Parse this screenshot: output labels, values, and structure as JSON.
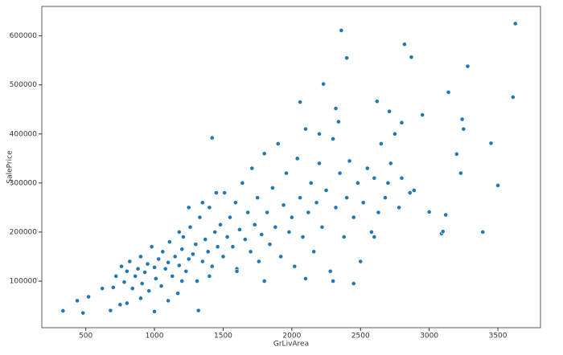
{
  "chart_data": {
    "type": "scatter",
    "xlabel": "GrLivArea",
    "ylabel": "SalePrice",
    "color": "#1f77b4",
    "xlim": [
      180,
      3810
    ],
    "ylim": [
      5000,
      660000
    ],
    "xticks": [
      500,
      1000,
      1500,
      2000,
      2500,
      3000,
      3500
    ],
    "yticks": [
      100000,
      200000,
      300000,
      400000,
      500000,
      600000
    ],
    "x": [
      334,
      438,
      480,
      520,
      2360,
      2400,
      3627,
      2820,
      2870,
      3280,
      2230,
      3140,
      3610,
      2060,
      2620,
      2320,
      2950,
      2710,
      3240,
      2340,
      2800,
      3250,
      1420,
      3450,
      3200,
      3230,
      3500,
      3390,
      3090,
      3100,
      3000,
      3120,
      2890,
      2860,
      700,
      720,
      750,
      760,
      780,
      800,
      820,
      840,
      860,
      880,
      900,
      910,
      930,
      950,
      960,
      980,
      1000,
      1010,
      1030,
      1050,
      1060,
      1080,
      1100,
      1110,
      1130,
      1150,
      1170,
      1180,
      1200,
      1210,
      1230,
      1250,
      1260,
      1280,
      1300,
      1310,
      1330,
      1350,
      1370,
      1390,
      1400,
      1420,
      1440,
      1460,
      1480,
      1500,
      1510,
      1530,
      1550,
      1570,
      1590,
      1600,
      1620,
      1640,
      1660,
      1680,
      1700,
      1710,
      1730,
      1750,
      1760,
      1780,
      1800,
      1820,
      1840,
      1860,
      1880,
      1900,
      1920,
      1940,
      1960,
      1980,
      2000,
      2020,
      2040,
      2060,
      2080,
      2100,
      2120,
      2140,
      2160,
      2180,
      2200,
      2220,
      2250,
      2280,
      2300,
      2320,
      2350,
      2380,
      2400,
      2420,
      2450,
      2480,
      2500,
      2520,
      2550,
      2580,
      2600,
      2630,
      2650,
      2680,
      2700,
      2720,
      2750,
      2780,
      2800,
      620,
      680,
      800,
      900,
      1000,
      1100,
      1320,
      1180,
      1250,
      1350,
      1450,
      1200,
      1400,
      1600,
      1800,
      2100,
      2300,
      2450,
      2600,
      2200
    ],
    "y": [
      39300,
      60000,
      35000,
      68000,
      611000,
      555000,
      625000,
      582900,
      556600,
      538000,
      501800,
      485000,
      475000,
      465000,
      466500,
      451950,
      438780,
      446000,
      430000,
      424870,
      423000,
      410000,
      392000,
      381000,
      359000,
      320000,
      295000,
      200000,
      197000,
      201000,
      241000,
      235000,
      285000,
      280000,
      87000,
      110000,
      52000,
      130000,
      98000,
      120000,
      140000,
      85000,
      110000,
      125000,
      150000,
      95000,
      118000,
      135000,
      80000,
      170000,
      128000,
      105000,
      145000,
      90000,
      160000,
      125000,
      138000,
      180000,
      110000,
      150000,
      75000,
      132000,
      165000,
      190000,
      120000,
      145000,
      210000,
      155000,
      175000,
      100000,
      230000,
      140000,
      185000,
      160000,
      250000,
      130000,
      200000,
      170000,
      215000,
      150000,
      280000,
      190000,
      230000,
      170000,
      260000,
      125000,
      205000,
      300000,
      185000,
      240000,
      160000,
      330000,
      215000,
      270000,
      140000,
      195000,
      360000,
      240000,
      175000,
      290000,
      210000,
      380000,
      150000,
      255000,
      320000,
      200000,
      230000,
      130000,
      350000,
      270000,
      190000,
      410000,
      240000,
      300000,
      160000,
      260000,
      340000,
      210000,
      285000,
      120000,
      390000,
      250000,
      320000,
      190000,
      270000,
      345000,
      230000,
      300000,
      140000,
      260000,
      330000,
      200000,
      310000,
      240000,
      380000,
      270000,
      300000,
      340000,
      400000,
      250000,
      310000,
      85000,
      40000,
      55000,
      65000,
      38000,
      60000,
      40000,
      200000,
      250000,
      260000,
      280000,
      100000,
      110000,
      120000,
      100000,
      105000,
      100000,
      95000,
      190000,
      400000
    ]
  }
}
